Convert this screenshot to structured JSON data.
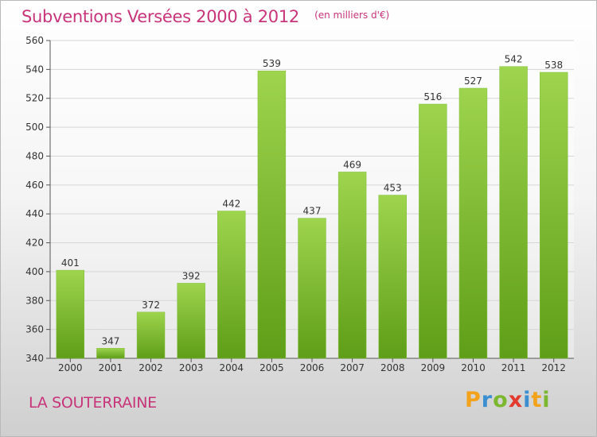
{
  "header": {
    "title": "Subventions Versées 2000 à 2012",
    "unit": "(en milliers d'€)"
  },
  "location": "LA SOUTERRAINE",
  "logo": {
    "letters": [
      "P",
      "r",
      "o",
      "x",
      "i",
      "t",
      "i"
    ],
    "colors": [
      "#f2a21b",
      "#3b8fd0",
      "#7cb82f",
      "#e23b2e",
      "#3b8fd0",
      "#f2a21b",
      "#7cb82f"
    ]
  },
  "colors": {
    "bar_top": "#9ed44e",
    "bar_bottom": "#5f9e18",
    "title": "#c8347a",
    "grid": "#d6d6d6"
  },
  "chart_data": {
    "type": "bar",
    "title": "Subventions Versées 2000 à 2012",
    "subtitle": "(en milliers d'€)",
    "categories": [
      "2000",
      "2001",
      "2002",
      "2003",
      "2004",
      "2005",
      "2006",
      "2007",
      "2008",
      "2009",
      "2010",
      "2011",
      "2012"
    ],
    "values": [
      401,
      347,
      372,
      392,
      442,
      539,
      437,
      469,
      453,
      516,
      527,
      542,
      538
    ],
    "ylim": [
      340,
      560
    ],
    "yticks": [
      340,
      360,
      380,
      400,
      420,
      440,
      460,
      480,
      500,
      520,
      540,
      560
    ],
    "grid": true,
    "xlabel": "",
    "ylabel": ""
  }
}
